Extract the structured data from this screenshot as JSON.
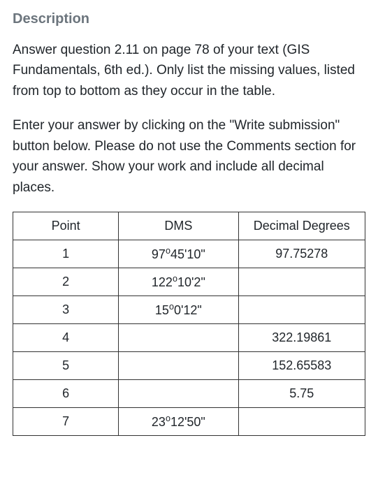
{
  "heading": "Description",
  "para1": "Answer question 2.11 on page 78 of your text (GIS Fundamentals, 6th ed.). Only list the missing values, listed from top to bottom as they occur in the table.",
  "para2": "Enter your answer by clicking on the \"Write submission\" button below. Please do not use the Comments section for your answer. Show your work and include all decimal places.",
  "table": {
    "headers": {
      "point": "Point",
      "dms": "DMS",
      "dd": "Decimal Degrees"
    },
    "rows": [
      {
        "point": "1",
        "dms": "97°45'10\"",
        "dd": "97.75278"
      },
      {
        "point": "2",
        "dms": "122°10'2\"",
        "dd": ""
      },
      {
        "point": "3",
        "dms": "15°0'12\"",
        "dd": ""
      },
      {
        "point": "4",
        "dms": "",
        "dd": "322.19861"
      },
      {
        "point": "5",
        "dms": "",
        "dd": "152.65583"
      },
      {
        "point": "6",
        "dms": "",
        "dd": "5.75"
      },
      {
        "point": "7",
        "dms": "23°12'50\"",
        "dd": ""
      }
    ]
  },
  "styling": {
    "heading_color": "#6c757d",
    "text_color": "#21262b",
    "border_color": "#333333",
    "background_color": "#ffffff",
    "body_font_size": 19,
    "heading_font_size": 20,
    "table_font_size": 18,
    "col_widths": [
      "30%",
      "34%",
      "36%"
    ]
  }
}
